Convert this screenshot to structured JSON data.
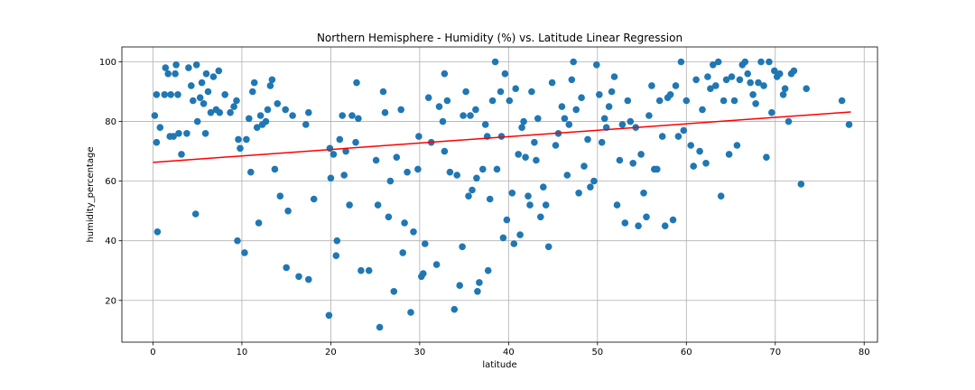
{
  "chart_data": {
    "type": "scatter",
    "title": "Northern Hemisphere - Humidity (%) vs. Latitude Linear Regression",
    "xlabel": "latitude",
    "ylabel": "humidity_percentage",
    "xlim": [
      -3.5,
      81.5
    ],
    "ylim": [
      6,
      105
    ],
    "xticks": [
      0,
      10,
      20,
      30,
      40,
      50,
      60,
      70,
      80
    ],
    "yticks": [
      20,
      40,
      60,
      80,
      100
    ],
    "grid": true,
    "point_color": "#1f77b4",
    "line_color": "#ff0000",
    "regression": {
      "x": [
        0,
        78.5
      ],
      "y": [
        66.3,
        83.2
      ]
    },
    "series": [
      {
        "points": [
          [
            0.2,
            82
          ],
          [
            0.4,
            89
          ],
          [
            0.4,
            73
          ],
          [
            0.5,
            43
          ],
          [
            0.8,
            78
          ],
          [
            1.3,
            89
          ],
          [
            1.4,
            98
          ],
          [
            1.7,
            96
          ],
          [
            1.9,
            75
          ],
          [
            2.0,
            89
          ],
          [
            2.3,
            75
          ],
          [
            2.5,
            96
          ],
          [
            2.6,
            99
          ],
          [
            2.8,
            89
          ],
          [
            2.9,
            76
          ],
          [
            3.2,
            69
          ],
          [
            3.8,
            76
          ],
          [
            4.0,
            98
          ],
          [
            4.3,
            92
          ],
          [
            4.5,
            87
          ],
          [
            4.8,
            49
          ],
          [
            4.9,
            99
          ],
          [
            5.0,
            80
          ],
          [
            5.3,
            88
          ],
          [
            5.5,
            93
          ],
          [
            5.7,
            86
          ],
          [
            5.9,
            76
          ],
          [
            6.0,
            96
          ],
          [
            6.2,
            90
          ],
          [
            6.5,
            83
          ],
          [
            6.8,
            95
          ],
          [
            7.1,
            84
          ],
          [
            7.4,
            97
          ],
          [
            7.5,
            83
          ],
          [
            8.1,
            89
          ],
          [
            8.7,
            83
          ],
          [
            9.1,
            85
          ],
          [
            9.4,
            87
          ],
          [
            9.5,
            40
          ],
          [
            9.6,
            74
          ],
          [
            9.8,
            71
          ],
          [
            10.3,
            36
          ],
          [
            10.5,
            74
          ],
          [
            10.8,
            81
          ],
          [
            11.0,
            63
          ],
          [
            11.2,
            90
          ],
          [
            11.4,
            93
          ],
          [
            11.7,
            78
          ],
          [
            11.9,
            46
          ],
          [
            12.1,
            82
          ],
          [
            12.3,
            79
          ],
          [
            12.7,
            80
          ],
          [
            12.9,
            84
          ],
          [
            13.2,
            92
          ],
          [
            13.4,
            94
          ],
          [
            13.7,
            64
          ],
          [
            14.0,
            86
          ],
          [
            14.3,
            55
          ],
          [
            14.9,
            84
          ],
          [
            15.0,
            31
          ],
          [
            15.2,
            50
          ],
          [
            15.7,
            82
          ],
          [
            16.4,
            28
          ],
          [
            17.2,
            79
          ],
          [
            17.5,
            83
          ],
          [
            17.5,
            27
          ],
          [
            18.1,
            54
          ],
          [
            19.8,
            15
          ],
          [
            19.9,
            71
          ],
          [
            20.0,
            61
          ],
          [
            20.3,
            69
          ],
          [
            20.7,
            40
          ],
          [
            20.6,
            35
          ],
          [
            21.0,
            74
          ],
          [
            21.3,
            82
          ],
          [
            21.5,
            62
          ],
          [
            21.7,
            70
          ],
          [
            22.1,
            52
          ],
          [
            22.4,
            82
          ],
          [
            22.8,
            73
          ],
          [
            22.9,
            93
          ],
          [
            23.1,
            81
          ],
          [
            23.4,
            30
          ],
          [
            24.3,
            30
          ],
          [
            25.1,
            67
          ],
          [
            25.3,
            52
          ],
          [
            25.5,
            11
          ],
          [
            25.9,
            90
          ],
          [
            26.1,
            83
          ],
          [
            26.5,
            48
          ],
          [
            26.7,
            60
          ],
          [
            27.1,
            23
          ],
          [
            27.4,
            68
          ],
          [
            27.9,
            84
          ],
          [
            28.1,
            36
          ],
          [
            28.3,
            46
          ],
          [
            28.6,
            63
          ],
          [
            29.0,
            16
          ],
          [
            29.3,
            43
          ],
          [
            29.8,
            64
          ],
          [
            29.9,
            75
          ],
          [
            30.2,
            28
          ],
          [
            30.4,
            29
          ],
          [
            30.6,
            39
          ],
          [
            31.0,
            88
          ],
          [
            31.3,
            73
          ],
          [
            31.9,
            32
          ],
          [
            32.2,
            85
          ],
          [
            32.6,
            80
          ],
          [
            32.8,
            96
          ],
          [
            32.8,
            70
          ],
          [
            33.1,
            87
          ],
          [
            33.4,
            63
          ],
          [
            33.9,
            17
          ],
          [
            34.2,
            62
          ],
          [
            34.5,
            25
          ],
          [
            34.8,
            38
          ],
          [
            34.9,
            82
          ],
          [
            35.2,
            90
          ],
          [
            35.5,
            55
          ],
          [
            35.7,
            82
          ],
          [
            35.9,
            57
          ],
          [
            36.3,
            84
          ],
          [
            36.4,
            61
          ],
          [
            36.5,
            23
          ],
          [
            36.7,
            26
          ],
          [
            37.1,
            64
          ],
          [
            37.4,
            79
          ],
          [
            37.6,
            75
          ],
          [
            37.7,
            30
          ],
          [
            37.9,
            54
          ],
          [
            38.2,
            87
          ],
          [
            38.5,
            100
          ],
          [
            38.7,
            64
          ],
          [
            39.1,
            90
          ],
          [
            39.2,
            75
          ],
          [
            39.4,
            41
          ],
          [
            39.6,
            96
          ],
          [
            39.8,
            47
          ],
          [
            40.1,
            87
          ],
          [
            40.4,
            56
          ],
          [
            40.6,
            39
          ],
          [
            40.8,
            91
          ],
          [
            41.1,
            69
          ],
          [
            41.3,
            42
          ],
          [
            41.5,
            78
          ],
          [
            41.7,
            80
          ],
          [
            41.9,
            68
          ],
          [
            42.2,
            55
          ],
          [
            42.4,
            52
          ],
          [
            42.6,
            90
          ],
          [
            42.9,
            73
          ],
          [
            43.1,
            67
          ],
          [
            43.3,
            81
          ],
          [
            43.6,
            48
          ],
          [
            43.9,
            58
          ],
          [
            44.2,
            52
          ],
          [
            44.5,
            38
          ],
          [
            44.9,
            93
          ],
          [
            45.3,
            72
          ],
          [
            45.6,
            76
          ],
          [
            46.0,
            85
          ],
          [
            46.3,
            81
          ],
          [
            46.6,
            62
          ],
          [
            46.8,
            79
          ],
          [
            47.1,
            94
          ],
          [
            47.3,
            100
          ],
          [
            47.6,
            84
          ],
          [
            47.9,
            56
          ],
          [
            48.2,
            88
          ],
          [
            48.5,
            65
          ],
          [
            48.9,
            74
          ],
          [
            49.2,
            58
          ],
          [
            49.6,
            60
          ],
          [
            49.9,
            99
          ],
          [
            50.2,
            89
          ],
          [
            50.5,
            73
          ],
          [
            50.8,
            81
          ],
          [
            51.0,
            78
          ],
          [
            51.3,
            85
          ],
          [
            51.6,
            90
          ],
          [
            51.9,
            95
          ],
          [
            52.2,
            52
          ],
          [
            52.5,
            67
          ],
          [
            52.8,
            79
          ],
          [
            53.1,
            46
          ],
          [
            53.4,
            87
          ],
          [
            53.7,
            80
          ],
          [
            54.0,
            66
          ],
          [
            54.3,
            78
          ],
          [
            54.6,
            45
          ],
          [
            54.9,
            69
          ],
          [
            55.2,
            56
          ],
          [
            55.5,
            48
          ],
          [
            55.8,
            82
          ],
          [
            56.1,
            92
          ],
          [
            56.4,
            64
          ],
          [
            56.7,
            64
          ],
          [
            57.0,
            87
          ],
          [
            57.3,
            75
          ],
          [
            57.6,
            45
          ],
          [
            57.9,
            88
          ],
          [
            58.2,
            89
          ],
          [
            58.5,
            47
          ],
          [
            58.8,
            92
          ],
          [
            59.1,
            75
          ],
          [
            59.4,
            100
          ],
          [
            59.7,
            77
          ],
          [
            60.0,
            87
          ],
          [
            60.5,
            72
          ],
          [
            60.8,
            65
          ],
          [
            61.1,
            94
          ],
          [
            61.5,
            70
          ],
          [
            61.8,
            84
          ],
          [
            62.2,
            66
          ],
          [
            62.4,
            95
          ],
          [
            62.7,
            91
          ],
          [
            63.0,
            99
          ],
          [
            63.3,
            92
          ],
          [
            63.6,
            100
          ],
          [
            63.9,
            55
          ],
          [
            64.2,
            87
          ],
          [
            64.5,
            94
          ],
          [
            64.8,
            69
          ],
          [
            65.1,
            95
          ],
          [
            65.4,
            87
          ],
          [
            65.7,
            72
          ],
          [
            66.0,
            94
          ],
          [
            66.3,
            99
          ],
          [
            66.6,
            100
          ],
          [
            66.9,
            96
          ],
          [
            67.2,
            93
          ],
          [
            67.5,
            89
          ],
          [
            67.8,
            86
          ],
          [
            68.1,
            93
          ],
          [
            68.4,
            100
          ],
          [
            68.7,
            92
          ],
          [
            69.0,
            68
          ],
          [
            69.3,
            100
          ],
          [
            69.6,
            83
          ],
          [
            69.9,
            97
          ],
          [
            70.2,
            95
          ],
          [
            70.5,
            96
          ],
          [
            70.9,
            89
          ],
          [
            71.1,
            91
          ],
          [
            71.5,
            80
          ],
          [
            71.8,
            96
          ],
          [
            72.1,
            97
          ],
          [
            72.9,
            59
          ],
          [
            73.5,
            91
          ],
          [
            77.5,
            87
          ],
          [
            78.3,
            79
          ]
        ]
      }
    ]
  }
}
